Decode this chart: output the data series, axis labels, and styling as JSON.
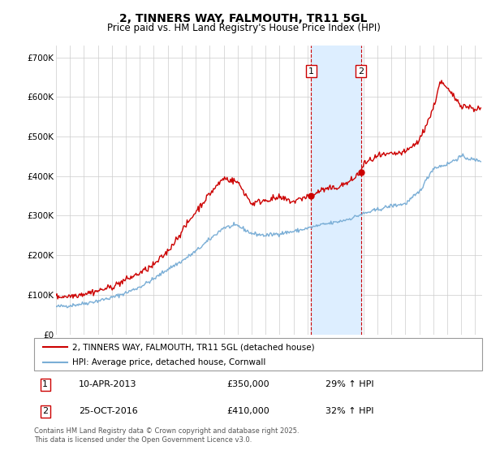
{
  "title": "2, TINNERS WAY, FALMOUTH, TR11 5GL",
  "subtitle": "Price paid vs. HM Land Registry's House Price Index (HPI)",
  "legend_line1": "2, TINNERS WAY, FALMOUTH, TR11 5GL (detached house)",
  "legend_line2": "HPI: Average price, detached house, Cornwall",
  "footer": "Contains HM Land Registry data © Crown copyright and database right 2025.\nThis data is licensed under the Open Government Licence v3.0.",
  "sale1_label": "1",
  "sale1_date": "10-APR-2013",
  "sale1_price": "£350,000",
  "sale1_hpi": "29% ↑ HPI",
  "sale2_label": "2",
  "sale2_date": "25-OCT-2016",
  "sale2_price": "£410,000",
  "sale2_hpi": "32% ↑ HPI",
  "sale1_x": 2013.27,
  "sale1_y": 350000,
  "sale2_x": 2016.82,
  "sale2_y": 410000,
  "ylim": [
    0,
    730000
  ],
  "xlim_start": 1995,
  "xlim_end": 2025.5,
  "hpi_color": "#7aaed6",
  "price_color": "#cc0000",
  "shade_color": "#ddeeff",
  "vline_color": "#cc0000",
  "grid_color": "#cccccc",
  "background_color": "#ffffff",
  "yticks": [
    0,
    100000,
    200000,
    300000,
    400000,
    500000,
    600000,
    700000
  ],
  "ytick_labels": [
    "£0",
    "£100K",
    "£200K",
    "£300K",
    "£400K",
    "£500K",
    "£600K",
    "£700K"
  ],
  "xticks": [
    1995,
    1996,
    1997,
    1998,
    1999,
    2000,
    2001,
    2002,
    2003,
    2004,
    2005,
    2006,
    2007,
    2008,
    2009,
    2010,
    2011,
    2012,
    2013,
    2014,
    2015,
    2016,
    2017,
    2018,
    2019,
    2020,
    2021,
    2022,
    2023,
    2024,
    2025
  ],
  "hpi_base_years": [
    1995,
    1996,
    1997,
    1998,
    1999,
    2000,
    2001,
    2002,
    2003,
    2004,
    2005,
    2006,
    2007,
    2008,
    2009,
    2010,
    2011,
    2012,
    2013,
    2014,
    2015,
    2016,
    2017,
    2018,
    2019,
    2020,
    2021,
    2022,
    2023,
    2024,
    2025
  ],
  "hpi_base_values": [
    70000,
    73000,
    78000,
    85000,
    93000,
    105000,
    120000,
    140000,
    165000,
    185000,
    210000,
    240000,
    270000,
    275000,
    255000,
    250000,
    255000,
    260000,
    268000,
    277000,
    283000,
    292000,
    305000,
    315000,
    325000,
    330000,
    360000,
    420000,
    430000,
    450000,
    440000
  ],
  "price_base_years": [
    1995,
    1996,
    1997,
    1998,
    1999,
    2000,
    2001,
    2002,
    2003,
    2004,
    2005,
    2006,
    2007,
    2008,
    2009,
    2010,
    2011,
    2012,
    2013,
    2013.27,
    2014,
    2015,
    2016,
    2016.82,
    2017,
    2018,
    2019,
    2020,
    2021,
    2022,
    2022.5,
    2023,
    2024,
    2025
  ],
  "price_base_values": [
    95000,
    97000,
    103000,
    110000,
    120000,
    138000,
    155000,
    175000,
    210000,
    260000,
    310000,
    355000,
    395000,
    385000,
    330000,
    340000,
    345000,
    335000,
    350000,
    350000,
    365000,
    370000,
    385000,
    410000,
    430000,
    450000,
    455000,
    460000,
    490000,
    570000,
    640000,
    620000,
    580000,
    570000
  ]
}
